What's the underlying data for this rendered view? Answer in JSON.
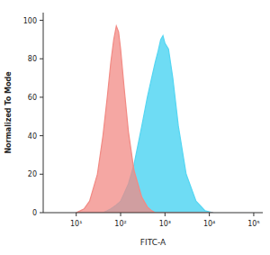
{
  "chart_data": {
    "type": "area",
    "x_label": "FITC-A",
    "y_label": "Normalized To Mode",
    "log": "x",
    "x": [
      10,
      15,
      20,
      30,
      40,
      50,
      60,
      70,
      80,
      90,
      100,
      120,
      150,
      200,
      300,
      400,
      500,
      600,
      700,
      800,
      900,
      1000,
      1200,
      1500,
      2000,
      3000,
      5000,
      8000,
      12000
    ],
    "series": [
      {
        "color": "#f28a84",
        "values": [
          0,
          2,
          6,
          20,
          40,
          60,
          78,
          90,
          97,
          94,
          85,
          65,
          42,
          22,
          8,
          3,
          1,
          0,
          0,
          0,
          0,
          0,
          0,
          0,
          0,
          0,
          0,
          0,
          0
        ]
      },
      {
        "color": "#55d6f2",
        "values": [
          0,
          0,
          0,
          0,
          0,
          1,
          2,
          3,
          4,
          5,
          6,
          10,
          15,
          25,
          45,
          60,
          70,
          78,
          84,
          90,
          92,
          88,
          85,
          70,
          45,
          20,
          6,
          1,
          0
        ]
      }
    ],
    "xlim": [
      1.8,
      160000
    ],
    "xticks": [
      {
        "value": 10,
        "label": "10¹"
      },
      {
        "value": 100,
        "label": "10²"
      },
      {
        "value": 1000,
        "label": "10³"
      },
      {
        "value": 10000,
        "label": "10⁴"
      },
      {
        "value": 100000,
        "label": "10⁵"
      }
    ],
    "ylim": [
      0,
      104
    ],
    "yticks": [
      0,
      20,
      40,
      60,
      80,
      100
    ]
  }
}
